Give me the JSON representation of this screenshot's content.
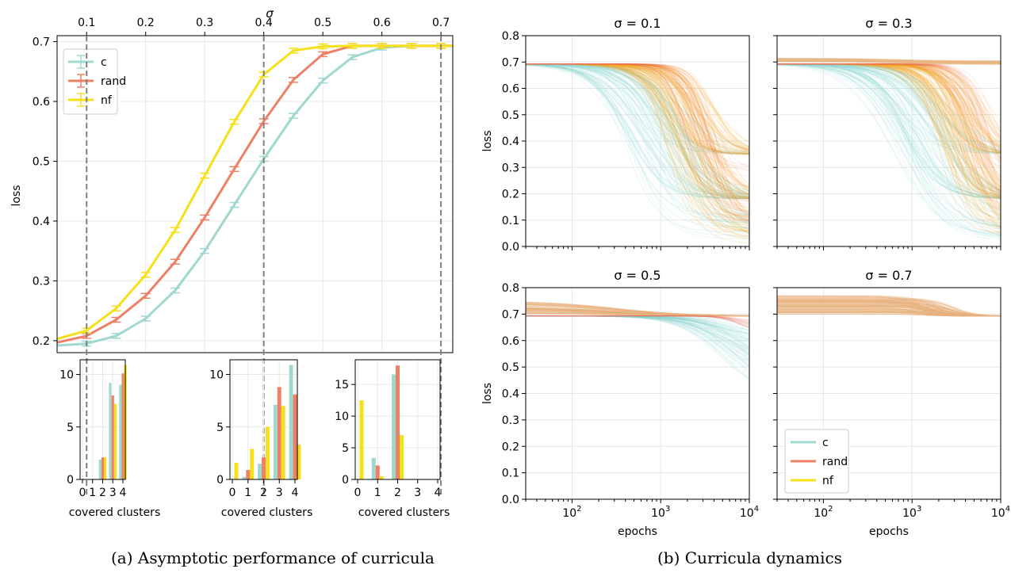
{
  "colors": {
    "c": "#9fd8cf",
    "rand": "#ee8066",
    "nf": "#f6e01a",
    "dashed": "#808080",
    "grid": "#e8e8e8",
    "dyn_c": "#8fd8d2",
    "dyn_orange": "#f3a62e",
    "dyn_rand": "#ec6a5a",
    "dyn_mix": "#e7b27e"
  },
  "captions": {
    "a": "(a) Asymptotic performance of curricula",
    "b": "(b) Curricula dynamics"
  },
  "chart_data": [
    {
      "id": "main",
      "type": "line",
      "xlabel": "σ",
      "ylabel": "loss",
      "x_ticks": [
        "0.1",
        "0.2",
        "0.3",
        "0.4",
        "0.5",
        "0.6",
        "0.7"
      ],
      "y_ticks": [
        "0.2",
        "0.3",
        "0.4",
        "0.5",
        "0.6",
        "0.7"
      ],
      "xlim": [
        0.05,
        0.72
      ],
      "ylim": [
        0.18,
        0.71
      ],
      "vlines": [
        0.1,
        0.4,
        0.7
      ],
      "legend": "top-left",
      "x": [
        0.05,
        0.1,
        0.15,
        0.2,
        0.25,
        0.3,
        0.35,
        0.4,
        0.45,
        0.5,
        0.55,
        0.6,
        0.65,
        0.7,
        0.72
      ],
      "series": [
        {
          "name": "c",
          "key": "c",
          "values": [
            0.192,
            0.195,
            0.208,
            0.237,
            0.284,
            0.35,
            0.427,
            0.504,
            0.576,
            0.635,
            0.674,
            0.69,
            0.693,
            0.693,
            0.693
          ]
        },
        {
          "name": "rand",
          "key": "rand",
          "values": [
            0.197,
            0.208,
            0.235,
            0.275,
            0.332,
            0.406,
            0.487,
            0.567,
            0.636,
            0.679,
            0.693,
            0.693,
            0.693,
            0.693,
            0.693
          ]
        },
        {
          "name": "nf",
          "key": "nf",
          "values": [
            0.203,
            0.217,
            0.254,
            0.31,
            0.385,
            0.476,
            0.566,
            0.645,
            0.685,
            0.692,
            0.693,
            0.693,
            0.693,
            0.693,
            0.693
          ]
        }
      ]
    },
    {
      "id": "hist1",
      "type": "bar",
      "xlabel": "covered clusters",
      "categories": [
        "0",
        "1",
        "2",
        "3",
        "4"
      ],
      "y_ticks": [
        "0",
        "5",
        "10"
      ],
      "ylim": [
        0,
        11.4
      ],
      "series": [
        {
          "name": "c",
          "key": "c",
          "values": [
            0,
            0,
            1.9,
            9.2,
            9.0
          ]
        },
        {
          "name": "rand",
          "key": "rand",
          "values": [
            0,
            0,
            2.1,
            8.0,
            10.1
          ]
        },
        {
          "name": "nf",
          "key": "nf",
          "values": [
            0,
            0.05,
            2.1,
            7.2,
            10.9
          ]
        }
      ]
    },
    {
      "id": "hist2",
      "type": "bar",
      "xlabel": "covered clusters",
      "categories": [
        "0",
        "1",
        "2",
        "3",
        "4"
      ],
      "y_ticks": [
        "0",
        "5",
        "10"
      ],
      "ylim": [
        0,
        11.4
      ],
      "series": [
        {
          "name": "c",
          "key": "c",
          "values": [
            0,
            0.25,
            1.5,
            7.1,
            10.9
          ]
        },
        {
          "name": "rand",
          "key": "rand",
          "values": [
            0.05,
            0.9,
            2.1,
            8.8,
            8.1
          ]
        },
        {
          "name": "nf",
          "key": "nf",
          "values": [
            1.6,
            2.9,
            5.0,
            7.0,
            3.3
          ]
        }
      ]
    },
    {
      "id": "hist3",
      "type": "bar",
      "xlabel": "covered clusters",
      "categories": [
        "0",
        "1",
        "2",
        "3",
        "4"
      ],
      "y_ticks": [
        "0",
        "5",
        "10",
        "15"
      ],
      "ylim": [
        0,
        18.9
      ],
      "series": [
        {
          "name": "c",
          "key": "c",
          "values": [
            0,
            3.4,
            16.6,
            0,
            0
          ]
        },
        {
          "name": "rand",
          "key": "rand",
          "values": [
            0,
            2.2,
            18.0,
            0,
            0
          ]
        },
        {
          "name": "nf",
          "key": "nf",
          "values": [
            12.5,
            0.5,
            7.0,
            0,
            0
          ]
        }
      ]
    },
    {
      "id": "dynamics",
      "type": "line",
      "xlabel": "epochs",
      "ylabel": "loss",
      "x_scale": "log",
      "xlim": [
        30,
        10000
      ],
      "ylim": [
        0,
        0.8
      ],
      "x_ticks": [
        "10^2",
        "10^3",
        "10^4"
      ],
      "y_ticks": [
        "0.0",
        "0.1",
        "0.2",
        "0.3",
        "0.4",
        "0.5",
        "0.6",
        "0.7",
        "0.8"
      ],
      "legend": "bottom-left of σ = 0.7 panel",
      "legend_entries": [
        {
          "name": "c",
          "key": "c"
        },
        {
          "name": "rand",
          "key": "rand"
        },
        {
          "name": "nf",
          "key": "nf"
        }
      ],
      "panels": [
        {
          "title": "σ = 0.1",
          "ylabels": true,
          "xlabels": false
        },
        {
          "title": "σ = 0.3",
          "ylabels": false,
          "xlabels": false
        },
        {
          "title": "σ = 0.5",
          "ylabels": true,
          "xlabels": true
        },
        {
          "title": "σ = 0.7",
          "ylabels": false,
          "xlabels": true
        }
      ]
    }
  ]
}
